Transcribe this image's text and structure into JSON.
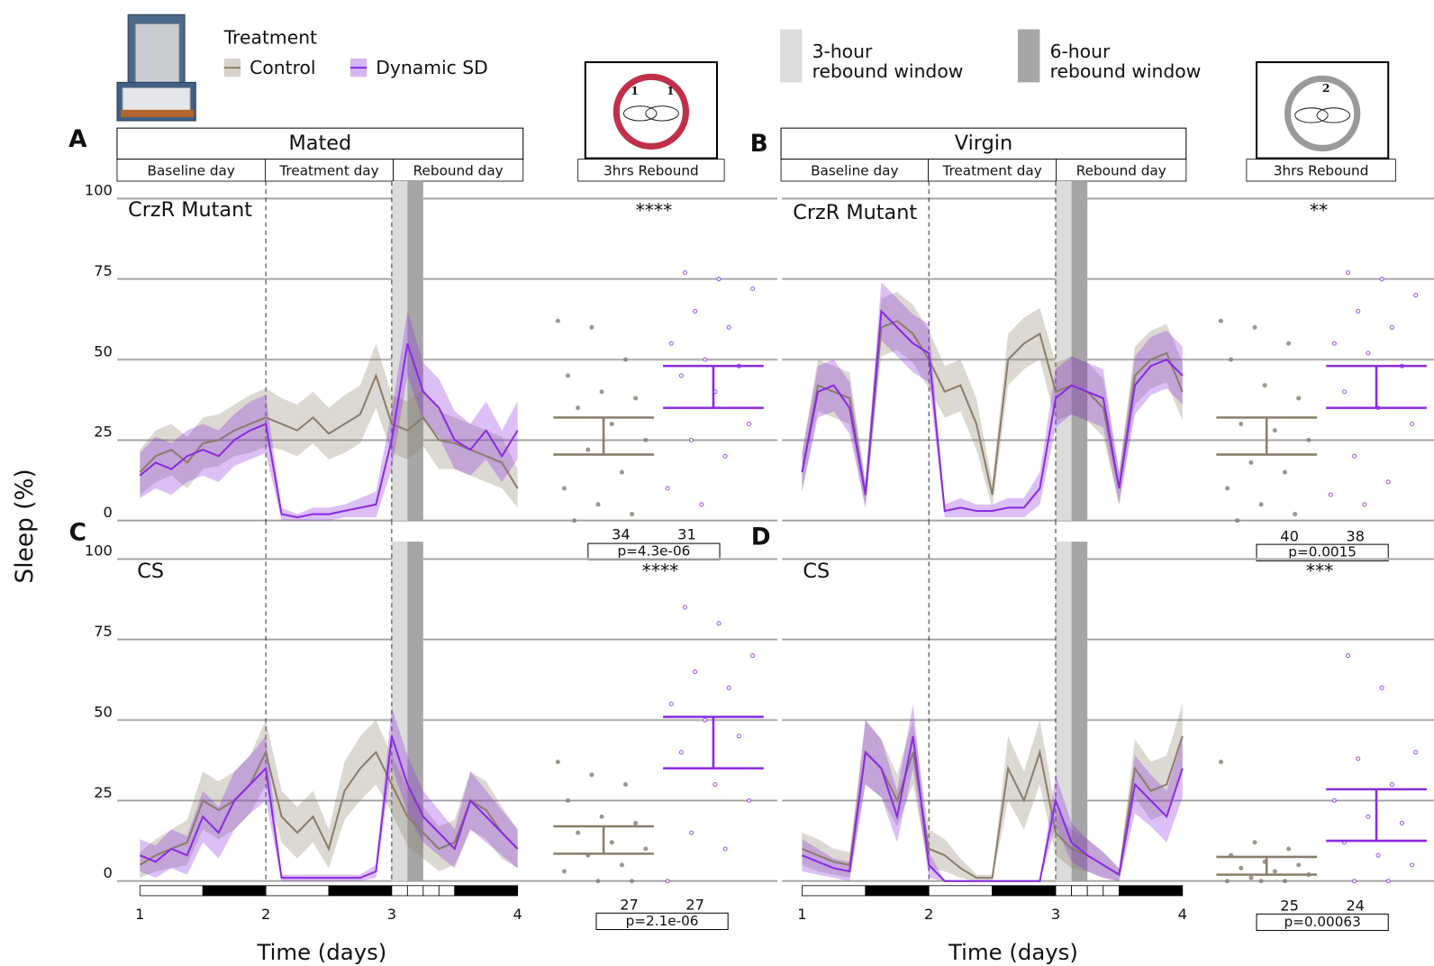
{
  "legend_title": "Treatment",
  "y_axis_label": "Sleep (%)",
  "x_axis_label": "Time (days)",
  "window_labels": [
    [
      "3-hour",
      "rebound window"
    ],
    [
      "6-hour",
      "rebound window"
    ]
  ],
  "columns": [
    {
      "title": "Mated",
      "phases": [
        "Baseline day",
        "Treatment day",
        "Rebound day"
      ],
      "rebound": "3hrs Rebound",
      "badge": [
        "1",
        "1"
      ]
    },
    {
      "title": "Virgin",
      "phases": [
        "Baseline day",
        "Treatment day",
        "Rebound day"
      ],
      "rebound": "3hrs Rebound",
      "badge": [
        "2"
      ]
    }
  ],
  "chart_data": [
    {
      "type": "line",
      "panel": "A",
      "label": "CrzR Mutant",
      "xlim": [
        1,
        4
      ],
      "xticks": [
        1,
        2,
        3,
        4
      ],
      "ylim": [
        0,
        100
      ],
      "yticks": [
        0,
        25,
        50,
        75,
        100
      ],
      "show_ytick_labels": true,
      "show_xtick_labels": false,
      "dividers": [
        2,
        3
      ],
      "shades": [
        {
          "from": 3,
          "to": 3.25,
          "color": "#a6a6a6"
        },
        {
          "from": 3,
          "to": 3.125,
          "color": "#dcdcdc"
        }
      ],
      "x": [
        1,
        1.125,
        1.25,
        1.375,
        1.5,
        1.625,
        1.75,
        1.875,
        2,
        2.125,
        2.25,
        2.375,
        2.5,
        2.625,
        2.75,
        2.875,
        3,
        3.125,
        3.25,
        3.375,
        3.5,
        3.625,
        3.75,
        3.875,
        4
      ],
      "series": [
        {
          "name": "Control",
          "color": "#8b7d6b",
          "values": [
            15,
            20,
            22,
            18,
            24,
            25,
            28,
            30,
            32,
            30,
            28,
            32,
            27,
            30,
            33,
            45,
            30,
            28,
            32,
            25,
            24,
            22,
            20,
            18,
            10
          ],
          "error": [
            7,
            8,
            8,
            8,
            8,
            8,
            8,
            9,
            9,
            8,
            8,
            8,
            8,
            9,
            9,
            10,
            9,
            9,
            9,
            9,
            8,
            8,
            8,
            8,
            6
          ]
        },
        {
          "name": "Dynamic SD",
          "color": "#8a2be2",
          "values": [
            14,
            18,
            16,
            20,
            22,
            20,
            25,
            28,
            30,
            2,
            1,
            2,
            2,
            3,
            4,
            5,
            25,
            55,
            40,
            35,
            25,
            22,
            28,
            20,
            28
          ],
          "error": [
            7,
            8,
            8,
            8,
            8,
            8,
            8,
            9,
            9,
            2,
            1,
            2,
            2,
            2,
            3,
            4,
            9,
            10,
            9,
            9,
            9,
            8,
            9,
            8,
            9
          ]
        }
      ],
      "strip": {
        "stars": "****",
        "p_label": "p=4.3e-06",
        "groups": [
          {
            "n": 34,
            "ci": [
              20.5,
              32
            ],
            "values": [
              62,
              60,
              50,
              45,
              40,
              38,
              35,
              30,
              25,
              22,
              15,
              10,
              5,
              2,
              0
            ]
          },
          {
            "n": 31,
            "ci": [
              35,
              48
            ],
            "values": [
              77,
              75,
              72,
              65,
              60,
              55,
              50,
              48,
              45,
              40,
              30,
              25,
              20,
              10,
              5
            ]
          }
        ]
      }
    },
    {
      "type": "line",
      "panel": "B",
      "label": "CrzR Mutant",
      "xlim": [
        1,
        4
      ],
      "xticks": [
        1,
        2,
        3,
        4
      ],
      "ylim": [
        0,
        100
      ],
      "yticks": [
        0,
        25,
        50,
        75,
        100
      ],
      "show_ytick_labels": false,
      "show_xtick_labels": false,
      "dividers": [
        2,
        3
      ],
      "shades": [
        {
          "from": 3,
          "to": 3.25,
          "color": "#a6a6a6"
        },
        {
          "from": 3,
          "to": 3.125,
          "color": "#dcdcdc"
        }
      ],
      "x": [
        1,
        1.125,
        1.25,
        1.375,
        1.5,
        1.625,
        1.75,
        1.875,
        2,
        2.125,
        2.25,
        2.375,
        2.5,
        2.625,
        2.75,
        2.875,
        3,
        3.125,
        3.25,
        3.375,
        3.5,
        3.625,
        3.75,
        3.875,
        4
      ],
      "series": [
        {
          "name": "Control",
          "color": "#8b7d6b",
          "values": [
            15,
            42,
            40,
            38,
            8,
            60,
            62,
            58,
            50,
            40,
            42,
            30,
            8,
            50,
            55,
            58,
            40,
            42,
            40,
            35,
            10,
            45,
            50,
            52,
            40
          ],
          "error": [
            6,
            8,
            8,
            8,
            4,
            9,
            9,
            9,
            9,
            8,
            8,
            8,
            4,
            8,
            8,
            8,
            9,
            9,
            9,
            9,
            5,
            9,
            9,
            9,
            9
          ]
        },
        {
          "name": "Dynamic SD",
          "color": "#8a2be2",
          "values": [
            15,
            40,
            42,
            35,
            8,
            65,
            60,
            55,
            52,
            3,
            4,
            3,
            3,
            4,
            4,
            10,
            38,
            42,
            40,
            38,
            10,
            42,
            48,
            50,
            45
          ],
          "error": [
            6,
            8,
            8,
            8,
            4,
            9,
            9,
            9,
            9,
            2,
            3,
            2,
            2,
            3,
            3,
            5,
            9,
            9,
            9,
            9,
            5,
            9,
            9,
            9,
            9
          ]
        }
      ],
      "strip": {
        "stars": "**",
        "p_label": "p=0.0015",
        "groups": [
          {
            "n": 40,
            "ci": [
              20.5,
              32
            ],
            "values": [
              62,
              60,
              55,
              50,
              42,
              38,
              30,
              28,
              25,
              18,
              15,
              10,
              5,
              2,
              0
            ]
          },
          {
            "n": 38,
            "ci": [
              35,
              48
            ],
            "values": [
              77,
              75,
              70,
              65,
              60,
              55,
              52,
              48,
              40,
              35,
              30,
              20,
              12,
              8,
              5
            ]
          }
        ]
      }
    },
    {
      "type": "line",
      "panel": "C",
      "label": "CS",
      "xlim": [
        1,
        4
      ],
      "xticks": [
        1,
        2,
        3,
        4
      ],
      "ylim": [
        0,
        100
      ],
      "yticks": [
        0,
        25,
        50,
        75,
        100
      ],
      "show_ytick_labels": true,
      "show_xtick_labels": true,
      "dividers": [
        2,
        3
      ],
      "shades": [
        {
          "from": 3,
          "to": 3.25,
          "color": "#a6a6a6"
        },
        {
          "from": 3,
          "to": 3.125,
          "color": "#dcdcdc"
        }
      ],
      "lightdark": [
        {
          "from": 1,
          "to": 1.5,
          "color": "#ffffff"
        },
        {
          "from": 1.5,
          "to": 2,
          "color": "#000000"
        },
        {
          "from": 2,
          "to": 2.5,
          "color": "#ffffff"
        },
        {
          "from": 2.5,
          "to": 3,
          "color": "#000000"
        },
        {
          "from": 3,
          "to": 3.125,
          "color": "#ffffff"
        },
        {
          "from": 3.125,
          "to": 3.25,
          "color": "#ffffff"
        },
        {
          "from": 3.25,
          "to": 3.375,
          "color": "#ffffff"
        },
        {
          "from": 3.375,
          "to": 3.5,
          "color": "#ffffff"
        },
        {
          "from": 3.5,
          "to": 4,
          "color": "#000000"
        }
      ],
      "x": [
        1,
        1.125,
        1.25,
        1.375,
        1.5,
        1.625,
        1.75,
        1.875,
        2,
        2.125,
        2.25,
        2.375,
        2.5,
        2.625,
        2.75,
        2.875,
        3,
        3.125,
        3.25,
        3.375,
        3.5,
        3.625,
        3.75,
        3.875,
        4
      ],
      "series": [
        {
          "name": "Control",
          "color": "#8b7d6b",
          "values": [
            5,
            8,
            10,
            12,
            25,
            22,
            25,
            30,
            40,
            20,
            15,
            20,
            10,
            28,
            35,
            40,
            30,
            20,
            15,
            10,
            12,
            25,
            22,
            15,
            10
          ],
          "error": [
            4,
            5,
            6,
            7,
            9,
            9,
            9,
            9,
            10,
            8,
            8,
            8,
            6,
            9,
            10,
            10,
            9,
            9,
            8,
            7,
            7,
            9,
            9,
            8,
            6
          ]
        },
        {
          "name": "Dynamic SD",
          "color": "#8a2be2",
          "values": [
            8,
            6,
            10,
            8,
            20,
            15,
            25,
            30,
            35,
            1,
            1,
            1,
            1,
            1,
            1,
            3,
            45,
            30,
            20,
            15,
            10,
            25,
            20,
            15,
            10
          ],
          "error": [
            5,
            5,
            6,
            6,
            8,
            8,
            9,
            9,
            10,
            1,
            1,
            1,
            1,
            1,
            1,
            2,
            9,
            9,
            8,
            7,
            6,
            9,
            8,
            7,
            6
          ]
        }
      ],
      "strip": {
        "stars": "****",
        "p_label": "p=2.1e-06",
        "groups": [
          {
            "n": 27,
            "ci": [
              8.5,
              17
            ],
            "values": [
              37,
              33,
              30,
              25,
              20,
              18,
              15,
              12,
              10,
              8,
              5,
              3,
              0,
              0
            ]
          },
          {
            "n": 27,
            "ci": [
              35,
              51
            ],
            "values": [
              85,
              80,
              70,
              65,
              60,
              55,
              50,
              45,
              40,
              30,
              25,
              15,
              10,
              0
            ]
          }
        ]
      }
    },
    {
      "type": "line",
      "panel": "D",
      "label": "CS",
      "xlim": [
        1,
        4
      ],
      "xticks": [
        1,
        2,
        3,
        4
      ],
      "ylim": [
        0,
        100
      ],
      "yticks": [
        0,
        25,
        50,
        75,
        100
      ],
      "show_ytick_labels": false,
      "show_xtick_labels": true,
      "dividers": [
        2,
        3
      ],
      "shades": [
        {
          "from": 3,
          "to": 3.25,
          "color": "#a6a6a6"
        },
        {
          "from": 3,
          "to": 3.125,
          "color": "#dcdcdc"
        }
      ],
      "lightdark": [
        {
          "from": 1,
          "to": 1.5,
          "color": "#ffffff"
        },
        {
          "from": 1.5,
          "to": 2,
          "color": "#000000"
        },
        {
          "from": 2,
          "to": 2.5,
          "color": "#ffffff"
        },
        {
          "from": 2.5,
          "to": 3,
          "color": "#000000"
        },
        {
          "from": 3,
          "to": 3.125,
          "color": "#ffffff"
        },
        {
          "from": 3.125,
          "to": 3.25,
          "color": "#ffffff"
        },
        {
          "from": 3.25,
          "to": 3.375,
          "color": "#ffffff"
        },
        {
          "from": 3.375,
          "to": 3.5,
          "color": "#ffffff"
        },
        {
          "from": 3.5,
          "to": 4,
          "color": "#000000"
        }
      ],
      "x": [
        1,
        1.125,
        1.25,
        1.375,
        1.5,
        1.625,
        1.75,
        1.875,
        2,
        2.125,
        2.25,
        2.375,
        2.5,
        2.625,
        2.75,
        2.875,
        3,
        3.125,
        3.25,
        3.375,
        3.5,
        3.625,
        3.75,
        3.875,
        4
      ],
      "series": [
        {
          "name": "Control",
          "color": "#8b7d6b",
          "values": [
            10,
            8,
            6,
            5,
            40,
            35,
            25,
            40,
            10,
            8,
            4,
            1,
            1,
            35,
            25,
            40,
            15,
            10,
            8,
            5,
            2,
            35,
            28,
            30,
            45
          ],
          "error": [
            5,
            5,
            4,
            4,
            10,
            9,
            8,
            10,
            6,
            5,
            3,
            1,
            1,
            10,
            9,
            10,
            7,
            6,
            5,
            4,
            2,
            9,
            9,
            9,
            10
          ]
        },
        {
          "name": "Dynamic SD",
          "color": "#8a2be2",
          "values": [
            8,
            6,
            4,
            3,
            40,
            35,
            20,
            45,
            5,
            0,
            0,
            0,
            0,
            0,
            0,
            0,
            25,
            12,
            8,
            5,
            2,
            30,
            25,
            20,
            35
          ],
          "error": [
            5,
            4,
            3,
            3,
            10,
            9,
            8,
            10,
            4,
            0,
            0,
            0,
            0,
            0,
            0,
            0,
            8,
            6,
            5,
            4,
            2,
            9,
            8,
            8,
            9
          ]
        }
      ],
      "strip": {
        "stars": "***",
        "p_label": "p=0.00063",
        "groups": [
          {
            "n": 25,
            "ci": [
              2,
              7.5
            ],
            "values": [
              37,
              12,
              10,
              8,
              6,
              5,
              4,
              3,
              2,
              1,
              0,
              0,
              0
            ]
          },
          {
            "n": 24,
            "ci": [
              12.5,
              28.5
            ],
            "values": [
              70,
              60,
              40,
              38,
              30,
              25,
              20,
              18,
              12,
              8,
              5,
              0,
              0
            ]
          }
        ]
      }
    }
  ]
}
